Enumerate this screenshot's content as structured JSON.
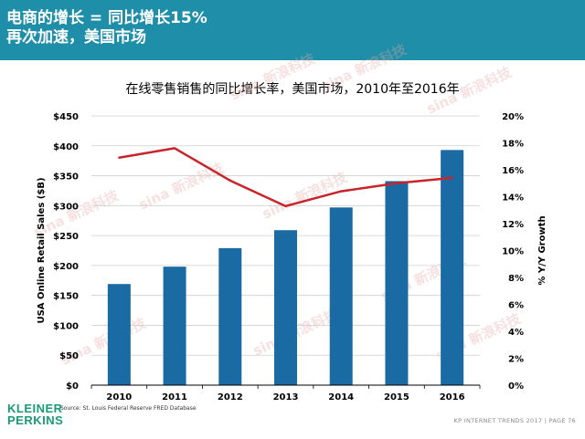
{
  "header": {
    "title_line1": "电商的增长 = 同比增长15%",
    "title_line2": "再次加速，美国市场"
  },
  "chart_data": {
    "type": "bar",
    "title": "在线零售销售的同比增长率，美国市场，2010年至2016年",
    "categories": [
      "2010",
      "2011",
      "2012",
      "2013",
      "2014",
      "2015",
      "2016"
    ],
    "series": [
      {
        "name": "USA Online Retail Sales ($B)",
        "type": "bar",
        "axis": "left",
        "color": "#1a6aa3",
        "values": [
          169,
          198,
          229,
          259,
          297,
          341,
          393
        ]
      },
      {
        "name": "% Y/Y Growth",
        "type": "line",
        "axis": "right",
        "color": "#c8252b",
        "values": [
          16.9,
          17.6,
          15.2,
          13.3,
          14.4,
          15.0,
          15.4
        ]
      }
    ],
    "ylabel": "USA Online Retail Sales ($B)",
    "y2label": "% Y/Y Growth",
    "ylim": [
      0,
      450
    ],
    "y2lim": [
      0,
      20
    ],
    "yticks": [
      "$0",
      "$50",
      "$100",
      "$150",
      "$200",
      "$250",
      "$300",
      "$350",
      "$400",
      "$450"
    ],
    "y2ticks": [
      "0%",
      "2%",
      "4%",
      "6%",
      "8%",
      "10%",
      "12%",
      "14%",
      "16%",
      "18%",
      "20%"
    ],
    "grid": true
  },
  "source": "Source: St. Louis Federal Reserve FRED Database",
  "logo": {
    "line1": "KLEINER",
    "line2": "PERKINS",
    "color": "#1a9a77"
  },
  "footer": "KP INTERNET TRENDS 2017  |  PAGE 76",
  "watermark": "sina 新浪科技"
}
